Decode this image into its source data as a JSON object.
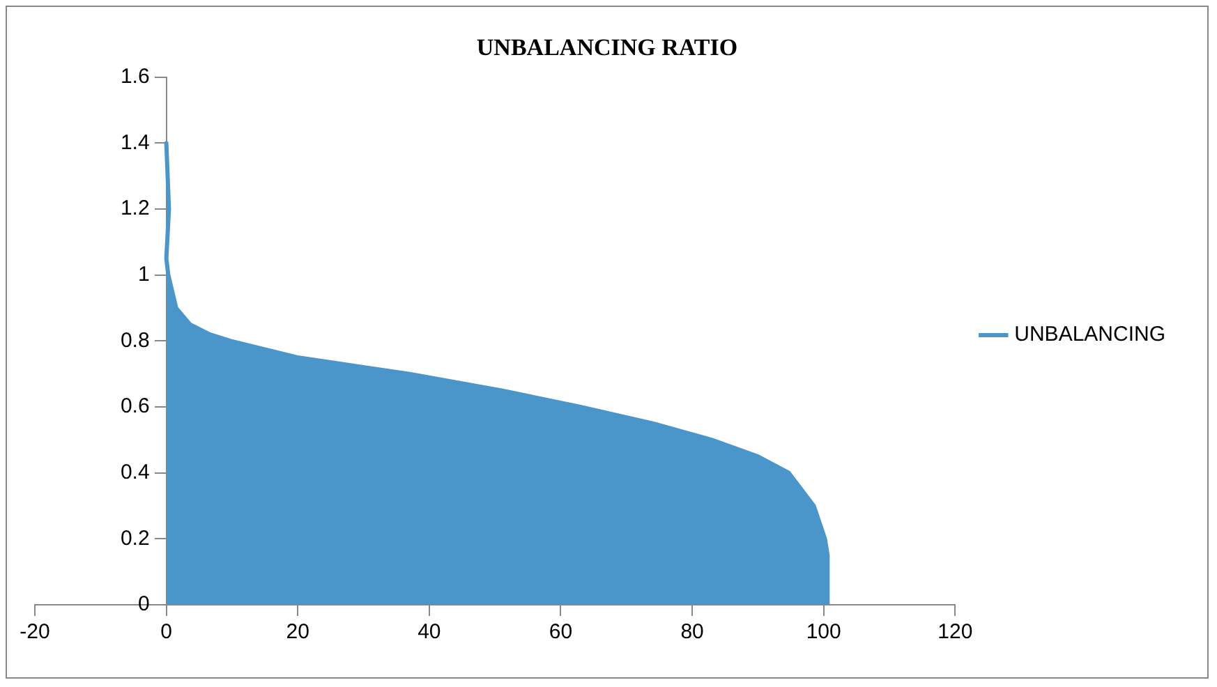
{
  "chart_data": {
    "type": "area",
    "title": "UNBALANCING RATIO",
    "series": [
      {
        "name": "UNBALANCING",
        "color": "#4a96ca",
        "x": [
          0,
          0.4,
          0,
          0.3,
          1.5,
          3.6,
          6.6,
          9.8,
          20,
          37,
          51,
          63,
          74,
          83,
          90,
          94.7,
          98.5,
          100.2,
          100.6,
          100.6
        ],
        "values": [
          1.4,
          1.2,
          1.05,
          1,
          0.9,
          0.85,
          0.82,
          0.8,
          0.75,
          0.7,
          0.65,
          0.6,
          0.55,
          0.5,
          0.45,
          0.4,
          0.3,
          0.2,
          0.15,
          0
        ]
      }
    ],
    "xlim": [
      -20,
      120
    ],
    "xticks": [
      -20,
      0,
      20,
      40,
      60,
      80,
      100,
      120
    ],
    "ylim": [
      0,
      1.6
    ],
    "yticks": [
      0,
      0.2,
      0.4,
      0.6,
      0.8,
      1,
      1.2,
      1.4,
      1.6
    ],
    "grid": false,
    "legend": "right",
    "marker": "none",
    "line_style": "solid"
  }
}
